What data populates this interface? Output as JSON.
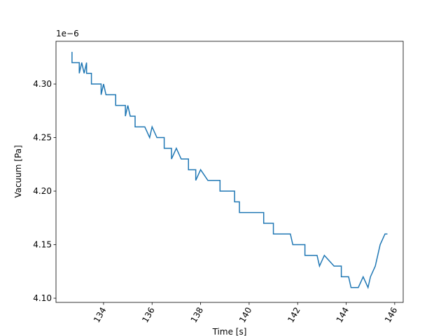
{
  "chart_data": {
    "type": "line",
    "x_label": "Time [s]",
    "y_label": "Vacuum [Pa]",
    "y_offset_label": "1e−6",
    "color": "#1f77b4",
    "x": [
      132.7,
      132.7,
      133.0,
      133.0,
      133.1,
      133.2,
      133.3,
      133.3,
      133.5,
      133.5,
      133.9,
      133.9,
      134.0,
      134.1,
      134.5,
      134.5,
      134.9,
      134.9,
      135.0,
      135.1,
      135.3,
      135.3,
      135.7,
      135.9,
      136.0,
      136.2,
      136.5,
      136.5,
      136.8,
      136.8,
      137.0,
      137.2,
      137.5,
      137.5,
      137.8,
      137.8,
      138.0,
      138.3,
      138.8,
      138.8,
      139.4,
      139.4,
      139.6,
      139.6,
      140.2,
      140.6,
      140.6,
      141.0,
      141.0,
      141.7,
      141.8,
      142.0,
      142.3,
      142.3,
      142.8,
      142.9,
      143.1,
      143.5,
      143.8,
      143.8,
      144.1,
      144.2,
      144.5,
      144.7,
      144.9,
      145.0,
      145.2,
      145.3,
      145.4,
      145.6,
      145.7
    ],
    "values": [
      4.33,
      4.32,
      4.32,
      4.31,
      4.32,
      4.31,
      4.32,
      4.31,
      4.31,
      4.3,
      4.3,
      4.29,
      4.3,
      4.29,
      4.29,
      4.28,
      4.28,
      4.27,
      4.28,
      4.27,
      4.27,
      4.26,
      4.26,
      4.25,
      4.26,
      4.25,
      4.25,
      4.24,
      4.24,
      4.23,
      4.24,
      4.23,
      4.23,
      4.22,
      4.22,
      4.21,
      4.22,
      4.21,
      4.21,
      4.2,
      4.2,
      4.19,
      4.19,
      4.18,
      4.18,
      4.18,
      4.17,
      4.17,
      4.16,
      4.16,
      4.15,
      4.15,
      4.15,
      4.14,
      4.14,
      4.13,
      4.14,
      4.13,
      4.13,
      4.12,
      4.12,
      4.11,
      4.11,
      4.12,
      4.11,
      4.12,
      4.13,
      4.14,
      4.15,
      4.16,
      4.16
    ],
    "xlim": [
      132.04,
      146.35
    ],
    "ylim": [
      4.0961,
      4.3399
    ],
    "xticks": [
      134,
      136,
      138,
      140,
      142,
      144,
      146
    ],
    "yticks": [
      {
        "value": 4.1,
        "label": "4.10"
      },
      {
        "value": 4.15,
        "label": "4.15"
      },
      {
        "value": 4.2,
        "label": "4.20"
      },
      {
        "value": 4.25,
        "label": "4.25"
      },
      {
        "value": 4.3,
        "label": "4.30"
      }
    ]
  }
}
